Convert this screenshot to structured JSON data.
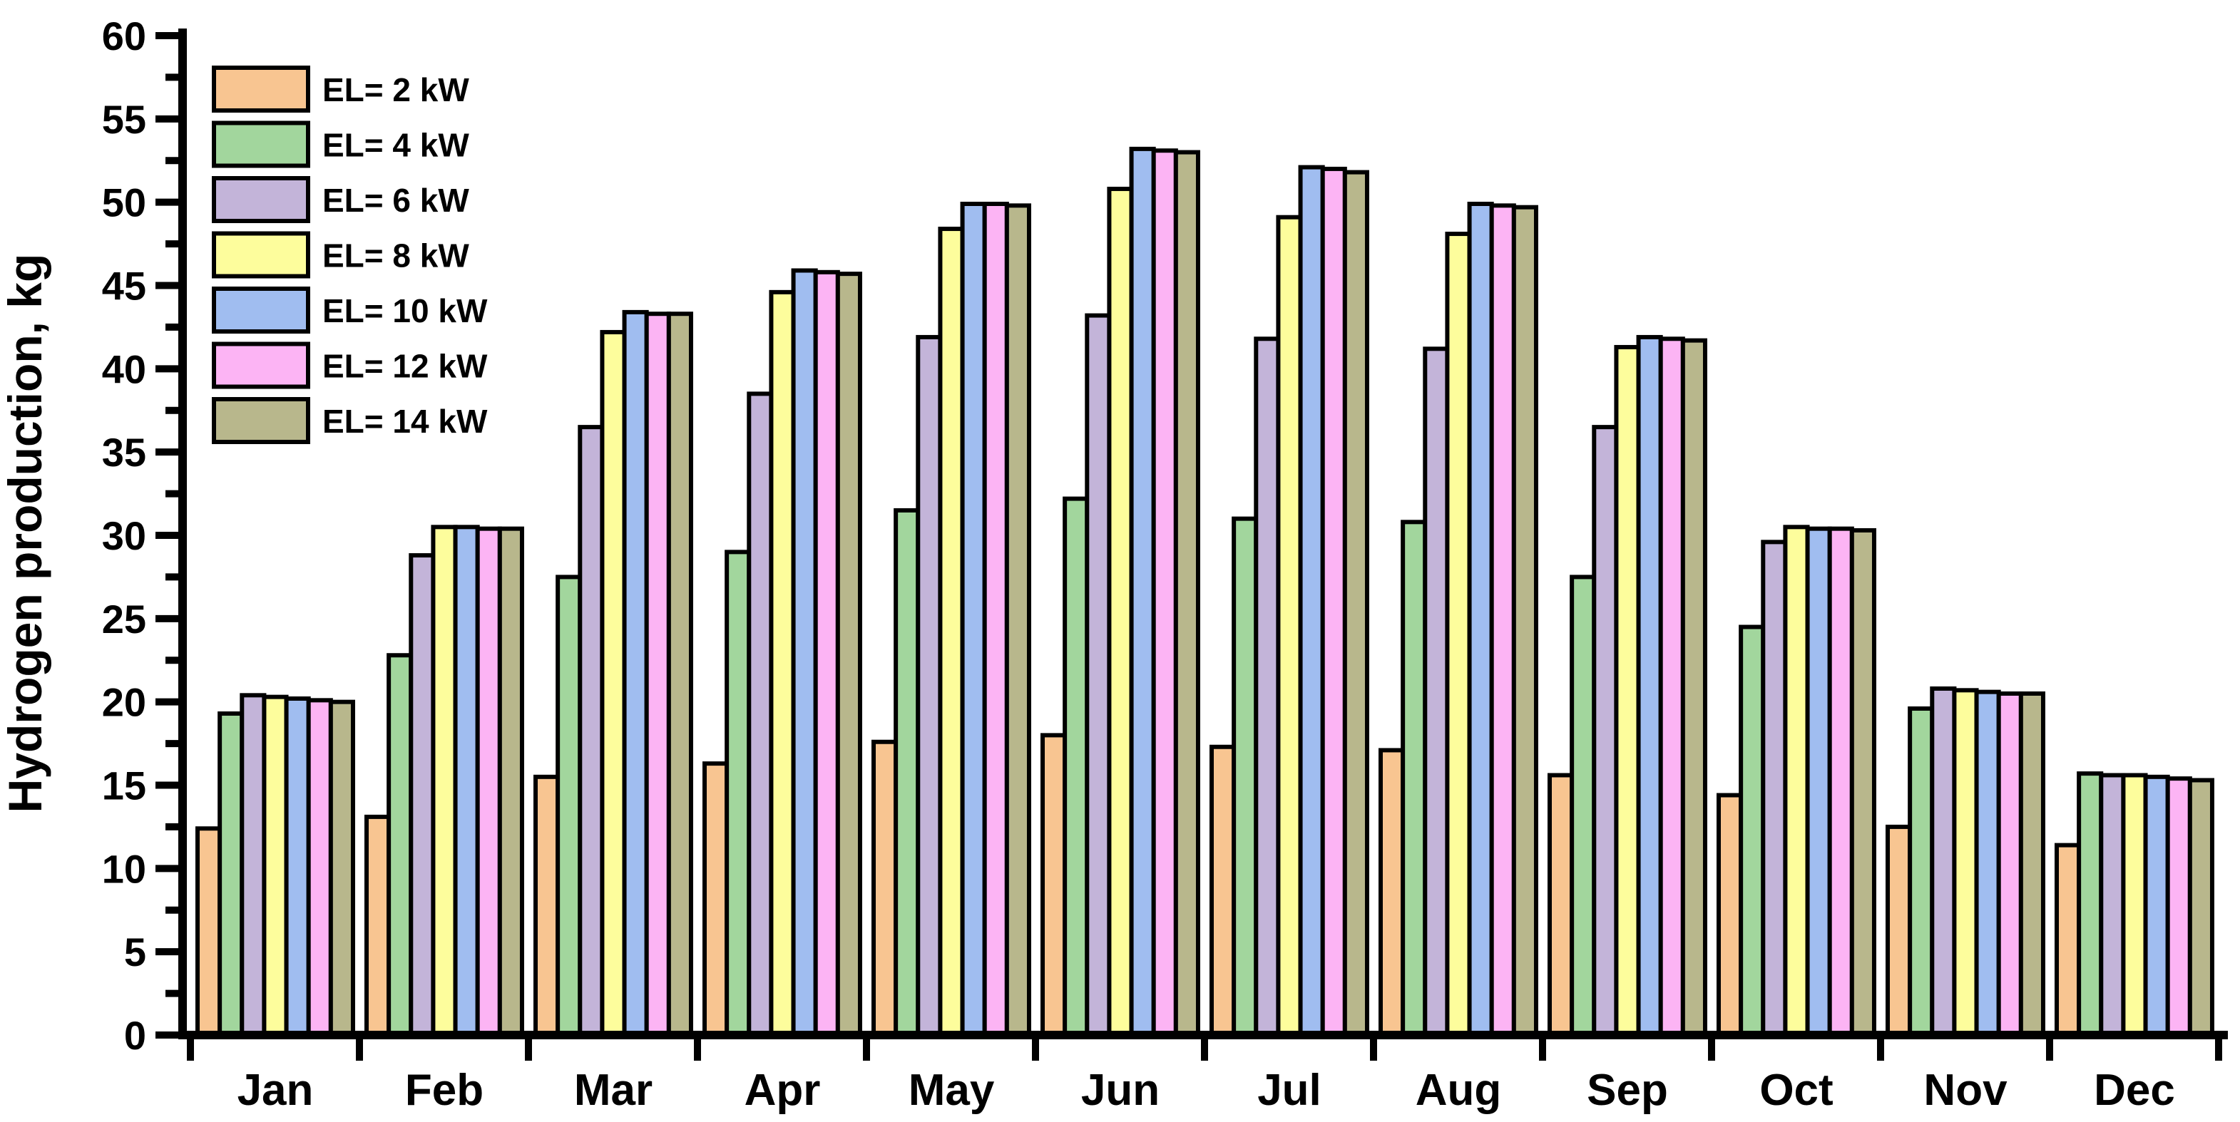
{
  "chart_data": {
    "type": "bar",
    "title": "",
    "xlabel": "",
    "ylabel": "Hydrogen production, kg",
    "ylim": [
      0,
      60
    ],
    "ytick_step": 5,
    "yminor_step": 2.5,
    "grid": false,
    "legend_position": "top-left-inside",
    "axis_color": "#000000",
    "bar_outline_color": "#000000",
    "categories": [
      "Jan",
      "Feb",
      "Mar",
      "Apr",
      "May",
      "Jun",
      "Jul",
      "Aug",
      "Sep",
      "Oct",
      "Nov",
      "Dec"
    ],
    "yticks": [
      "0",
      "5",
      "10",
      "15",
      "20",
      "25",
      "30",
      "35",
      "40",
      "45",
      "50",
      "55",
      "60"
    ],
    "series": [
      {
        "name": "EL= 2 kW",
        "color": "#F8C591",
        "values": [
          12.4,
          13.1,
          15.5,
          16.3,
          17.6,
          18.0,
          17.3,
          17.1,
          15.6,
          14.4,
          12.5,
          11.4
        ]
      },
      {
        "name": "EL= 4 kW",
        "color": "#A2D69D",
        "values": [
          19.3,
          22.8,
          27.5,
          29.0,
          31.5,
          32.2,
          31.0,
          30.8,
          27.5,
          24.5,
          19.6,
          15.7
        ]
      },
      {
        "name": "EL= 6 kW",
        "color": "#C3B4D9",
        "values": [
          20.4,
          28.8,
          36.5,
          38.5,
          41.9,
          43.2,
          41.8,
          41.2,
          36.5,
          29.6,
          20.8,
          15.6
        ]
      },
      {
        "name": "EL= 8 kW",
        "color": "#FDFD9C",
        "values": [
          20.3,
          30.5,
          42.2,
          44.6,
          48.4,
          50.8,
          49.1,
          48.1,
          41.3,
          30.5,
          20.7,
          15.6
        ]
      },
      {
        "name": "EL= 10 kW",
        "color": "#A0BDF0",
        "values": [
          20.2,
          30.5,
          43.4,
          45.9,
          49.9,
          53.2,
          52.1,
          49.9,
          41.9,
          30.4,
          20.6,
          15.5
        ]
      },
      {
        "name": "EL= 12 kW",
        "color": "#FCB4F4",
        "values": [
          20.1,
          30.4,
          43.3,
          45.8,
          49.9,
          53.1,
          52.0,
          49.8,
          41.8,
          30.4,
          20.5,
          15.4
        ]
      },
      {
        "name": "EL= 14 kW",
        "color": "#B8B78C",
        "values": [
          20.0,
          30.4,
          43.3,
          45.7,
          49.8,
          53.0,
          51.8,
          49.7,
          41.7,
          30.3,
          20.5,
          15.3
        ]
      }
    ]
  }
}
